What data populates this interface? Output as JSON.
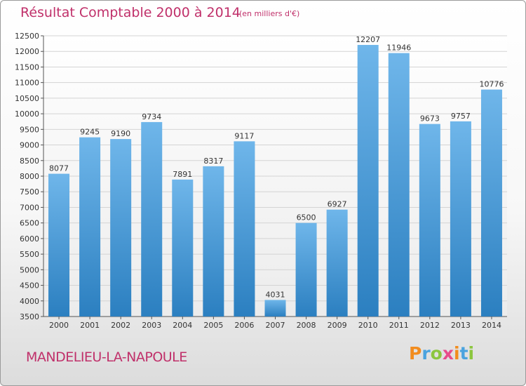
{
  "header": {
    "title": "Résultat Comptable 2000 à 2014",
    "subtitle": "(en milliers d'€)"
  },
  "footer": {
    "commune": "MANDELIEU-LA-NAPOULE",
    "logo_text": "Proxiti"
  },
  "colors": {
    "title": "#c0306a",
    "bar_light": "#6fb6ea",
    "bar_dark": "#2b7fc0",
    "logo_letters": [
      "#f28c1e",
      "#4aa3df",
      "#8cc63f",
      "#e84c8b",
      "#f28c1e",
      "#4aa3df",
      "#8cc63f"
    ]
  },
  "chart_data": {
    "type": "bar",
    "categories": [
      "2000",
      "2001",
      "2002",
      "2003",
      "2004",
      "2005",
      "2006",
      "2007",
      "2008",
      "2009",
      "2010",
      "2011",
      "2012",
      "2013",
      "2014"
    ],
    "values": [
      8077,
      9245,
      9190,
      9734,
      7891,
      8317,
      9117,
      4031,
      6500,
      6927,
      12207,
      11946,
      9673,
      9757,
      10776
    ],
    "ylim": [
      3500,
      12500
    ],
    "yticks": [
      3500,
      4000,
      4500,
      5000,
      5500,
      6000,
      6500,
      7000,
      7500,
      8000,
      8500,
      9000,
      9500,
      10000,
      10500,
      11000,
      11500,
      12000,
      12500
    ],
    "grid": true,
    "legend": "none"
  }
}
